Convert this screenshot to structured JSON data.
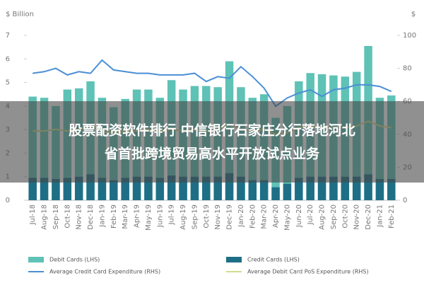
{
  "chart_data": {
    "type": "bar-line",
    "y_label": "$ Billion",
    "y2_label": "$",
    "categories": [
      "Jul-18",
      "Aug-18",
      "Sep-18",
      "Oct-18",
      "Nov-18",
      "Dec-18",
      "Jan-19",
      "Feb-19",
      "Mar-19",
      "Apr-19",
      "May-19",
      "Jun-19",
      "Jul-19",
      "Aug-19",
      "Sep-19",
      "Oct-19",
      "Nov-19",
      "Dec-19",
      "Jan-20",
      "Feb-20",
      "Mar-20",
      "Apr-20",
      "May-20",
      "Jun-20",
      "Jul-20",
      "Aug-20",
      "Sep-20",
      "Oct-20",
      "Nov-20",
      "Dec-20",
      "Jan-21",
      "Feb-21"
    ],
    "series": [
      {
        "name": "Debit Cards (LHS)",
        "kind": "bar",
        "color": "#5ec2b6",
        "values": [
          4.4,
          4.35,
          4.0,
          4.7,
          4.75,
          5.05,
          4.35,
          3.95,
          4.3,
          4.7,
          4.7,
          4.35,
          5.1,
          4.7,
          4.85,
          4.85,
          4.8,
          5.9,
          4.8,
          4.35,
          4.5,
          3.5,
          4.0,
          5.05,
          5.4,
          5.35,
          5.3,
          5.25,
          5.45,
          6.55,
          4.35,
          4.45
        ]
      },
      {
        "name": "Credit Cards (LHS)",
        "kind": "bar",
        "color": "#1e6f86",
        "values": [
          0.95,
          0.95,
          0.9,
          0.95,
          1.0,
          1.1,
          0.95,
          0.85,
          0.95,
          1.0,
          1.0,
          0.95,
          1.05,
          1.0,
          1.0,
          1.0,
          1.0,
          1.15,
          1.0,
          0.85,
          0.85,
          0.55,
          0.7,
          0.95,
          1.0,
          1.0,
          1.0,
          1.0,
          1.0,
          1.1,
          0.9,
          0.9
        ]
      },
      {
        "name": "Average Credit Card Expenditure (RHS)",
        "kind": "line",
        "axis": "y2",
        "color": "#4a8fd6",
        "values": [
          77,
          78,
          80,
          76,
          78,
          77,
          85,
          79,
          78,
          77,
          77,
          76,
          76,
          76,
          77,
          72,
          75,
          74,
          81,
          75,
          68,
          57,
          62,
          65,
          67,
          63,
          67,
          68,
          70,
          70,
          69,
          66
        ]
      },
      {
        "name": "Average Debit Card PoS Expenditure (RHS)",
        "kind": "line",
        "axis": "y2",
        "color": "#d3dc8c",
        "values": [
          42,
          42,
          43,
          42,
          43,
          45,
          42,
          41,
          42,
          42,
          43,
          42,
          43,
          42,
          43,
          42,
          43,
          46,
          43,
          42,
          43,
          40,
          41,
          44,
          45,
          44,
          44,
          44,
          45,
          48,
          45,
          44
        ]
      }
    ],
    "ylim": [
      0,
      7
    ],
    "yticks": [
      0,
      1,
      2,
      3,
      4,
      5,
      6,
      7
    ],
    "y2lim": [
      0,
      100
    ],
    "y2ticks": [
      0,
      20,
      40,
      60,
      80,
      100
    ]
  },
  "banner": {
    "lines": [
      "股票配资软件排行 中信银行石家庄分行落地河北",
      "省首批跨境贸易高水平开放试点业务"
    ]
  }
}
